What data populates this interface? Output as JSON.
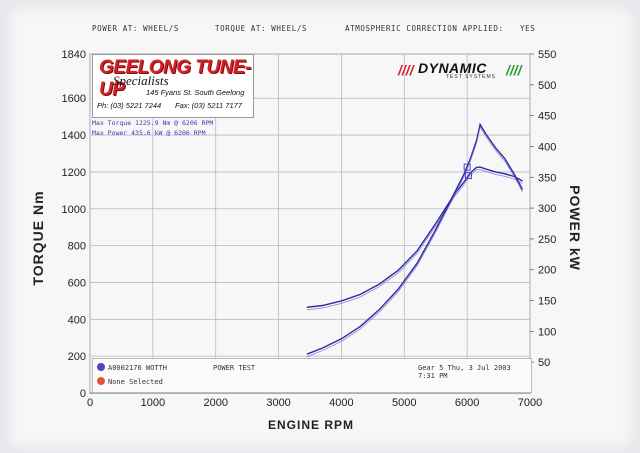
{
  "header": {
    "power_at": "POWER AT:  WHEEL/S",
    "torque_at": "TORQUE AT:  WHEEL/S",
    "atmo": "ATMOSPHERIC CORRECTION APPLIED:",
    "atmo_value": "YES"
  },
  "logo": {
    "name": "GEELONG TUNE-UP",
    "sub": "Specialists",
    "address": "145 Fyans St. South Geelong",
    "phone": "Ph: (03) 5221 7244",
    "fax": "Fax: (03) 5211 7177"
  },
  "max_info": {
    "torque": "Max Torque 1225.9 Nm @ 6206 RPM",
    "power": "Max Power 435.6 kW @ 6206 RPM"
  },
  "brand": {
    "name": "DYNAMIC",
    "sub": "TEST SYSTEMS",
    "red": "#d91f26",
    "green": "#2a9d2a"
  },
  "legend": {
    "run1": "A0002176 WOTTH",
    "run1_color": "#4b45c8",
    "run2": "None Selected",
    "run2_color": "#e8503a",
    "test": "POWER TEST",
    "info": "Gear 5  Thu, 3 Jul 2003  7:31 PM"
  },
  "chart_data": {
    "type": "line",
    "xlabel": "ENGINE RPM",
    "ylabel": "TORQUE Nm",
    "y2label": "POWER kW",
    "xlim": [
      0,
      7000
    ],
    "ylim": [
      0,
      1840
    ],
    "y2lim": [
      0,
      550
    ],
    "x_ticks": [
      0,
      1000,
      2000,
      3000,
      4000,
      5000,
      6000,
      7000
    ],
    "y_ticks": [
      200,
      400,
      600,
      800,
      1000,
      1200,
      1400,
      1600,
      1840
    ],
    "y2_ticks": [
      50,
      100,
      150,
      200,
      250,
      300,
      350,
      400,
      450,
      500,
      550
    ],
    "grid": true,
    "series": [
      {
        "name": "Torque (A0002176 WOTTH)",
        "axis": "left",
        "color": "#2e2a9a",
        "x": [
          3450,
          3700,
          4000,
          4300,
          4600,
          4900,
          5200,
          5500,
          5800,
          5950,
          6050,
          6150,
          6206,
          6300,
          6450,
          6600,
          6750,
          6880
        ],
        "values": [
          465,
          475,
          500,
          535,
          590,
          665,
          770,
          920,
          1080,
          1145,
          1195,
          1225,
          1226,
          1215,
          1200,
          1190,
          1175,
          1150
        ]
      },
      {
        "name": "Power (A0002176 WOTTH)",
        "axis": "right",
        "color": "#2e2a9a",
        "x": [
          3450,
          3700,
          4000,
          4300,
          4600,
          4900,
          5200,
          5500,
          5800,
          5950,
          6050,
          6150,
          6206,
          6300,
          6450,
          6600,
          6750,
          6880
        ],
        "values": [
          63,
          73,
          88,
          108,
          135,
          168,
          210,
          265,
          325,
          355,
          380,
          410,
          435.6,
          420,
          398,
          380,
          355,
          330
        ]
      }
    ],
    "markers": [
      {
        "x": 6000,
        "y": 1226
      },
      {
        "x": 6020,
        "y": 1180
      }
    ]
  }
}
